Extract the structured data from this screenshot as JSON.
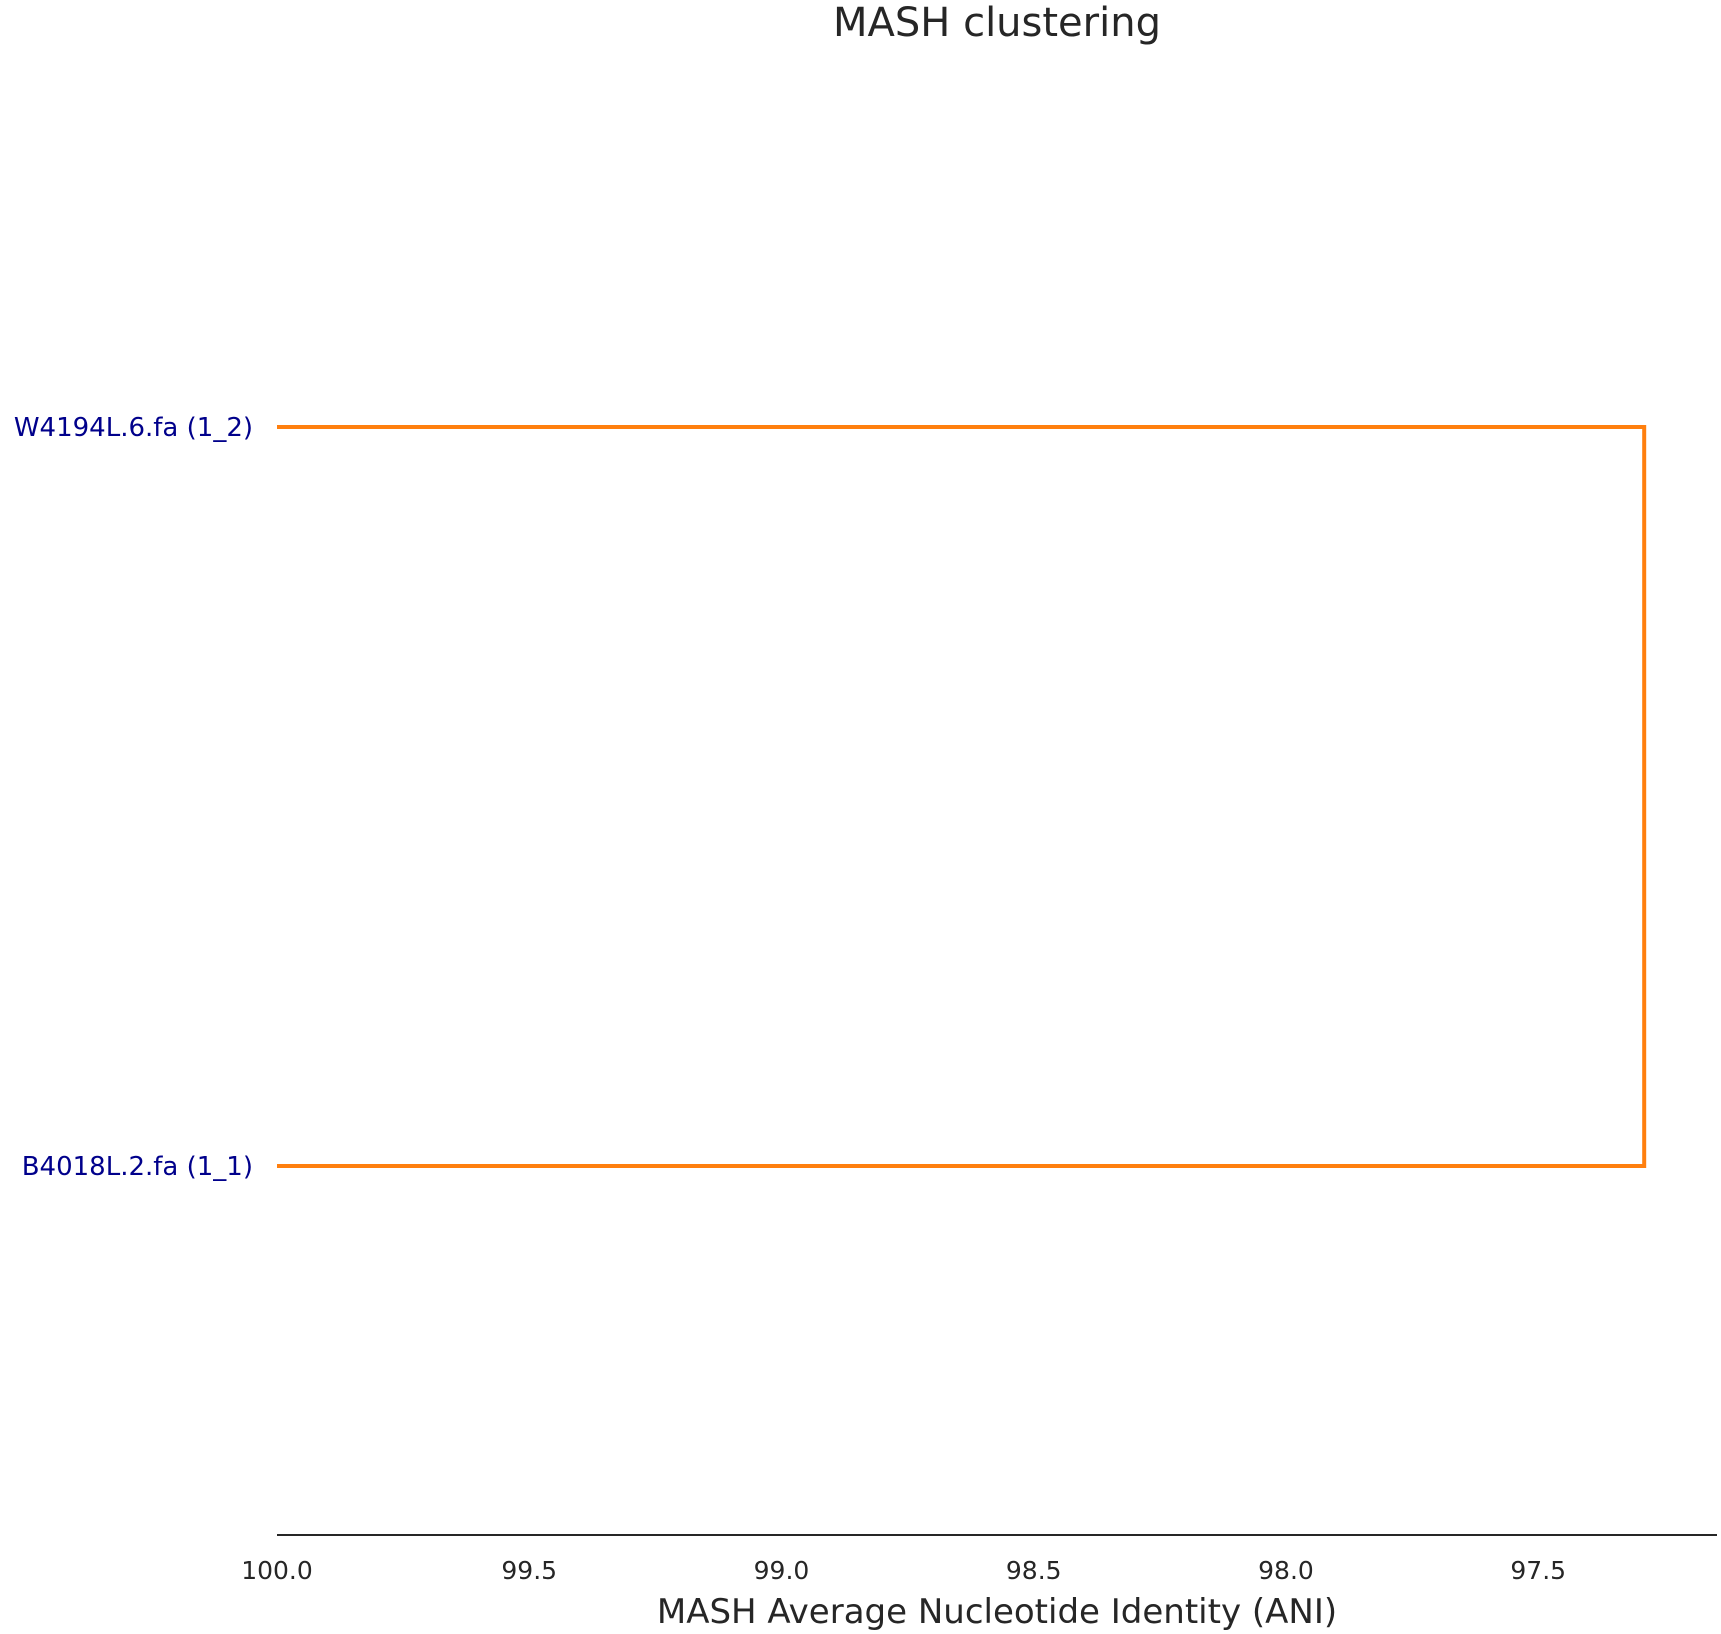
{
  "chart_data": {
    "type": "dendrogram",
    "title": "MASH clustering",
    "xlabel": "MASH Average Nucleotide Identity (ANI)",
    "ylabel": "",
    "xlim": [
      100.0,
      97.15
    ],
    "x_direction": "descending",
    "x_ticks": [
      100.0,
      99.5,
      99.0,
      98.5,
      98.0,
      97.5
    ],
    "x_tick_labels": [
      "100.0",
      "99.5",
      "99.0",
      "98.5",
      "98.0",
      "97.5"
    ],
    "grid": false,
    "leaves": [
      {
        "label": "W4194L.6.fa (1_2)",
        "ani": 100.0
      },
      {
        "label": "B4018L.2.fa (1_1)",
        "ani": 100.0
      }
    ],
    "merges": [
      {
        "children": [
          0,
          1
        ],
        "ani": 97.29,
        "color": "#ff7f0e"
      }
    ],
    "colors": {
      "link": "#ff7f0e",
      "leaf_label": "#00008b",
      "axis": "#262626"
    }
  }
}
